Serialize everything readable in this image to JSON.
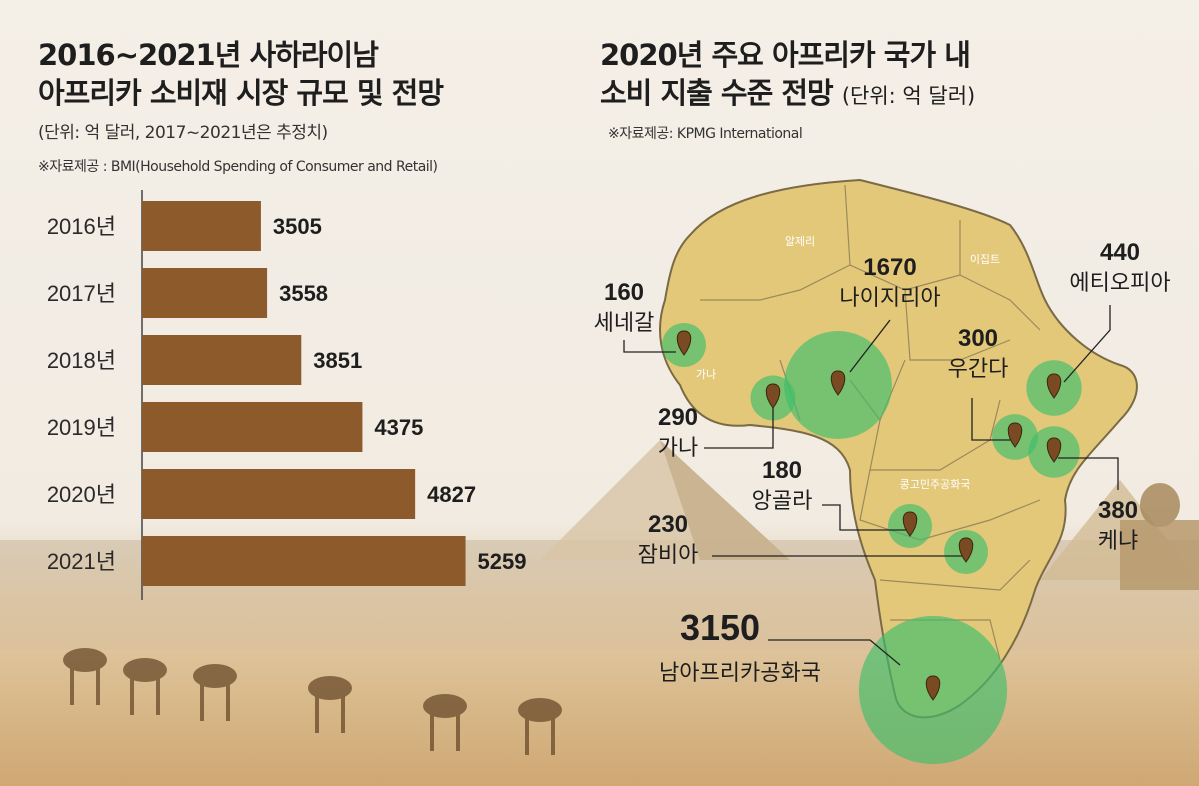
{
  "left": {
    "title_line1": "2016~2021년 사하라이남",
    "title_line2": "아프리카 소비재 시장 규모 및 전망",
    "subtitle": "(단위: 억 달러, 2017~2021년은 추정치)",
    "source": "※자료제공 : BMI(Household Spending of Consumer and Retail)"
  },
  "right": {
    "title_line1": "2020년 주요 아프리카 국가 내",
    "title_line2": "소비 지출 수준 전망",
    "title_unit": "(단위: 억 달러)",
    "source": "※자료제공: KPMG International"
  },
  "chart_data": [
    {
      "type": "bar",
      "orientation": "horizontal",
      "categories": [
        "2016년",
        "2017년",
        "2018년",
        "2019년",
        "2020년",
        "2021년"
      ],
      "values": [
        3505,
        3558,
        3851,
        4375,
        4827,
        5259
      ],
      "title": "2016~2021년 사하라이남 아프리카 소비재 시장 규모 및 전망",
      "unit": "억 달러",
      "bar_color": "#8c5a2b"
    },
    {
      "type": "bubble-map",
      "title": "2020년 주요 아프리카 국가 내 소비 지출 수준 전망",
      "unit": "억 달러",
      "points": [
        {
          "country": "세네갈",
          "value": 160
        },
        {
          "country": "가나",
          "value": 290
        },
        {
          "country": "나이지리아",
          "value": 1670
        },
        {
          "country": "에티오피아",
          "value": 440
        },
        {
          "country": "우간다",
          "value": 300
        },
        {
          "country": "케냐",
          "value": 380
        },
        {
          "country": "앙골라",
          "value": 180
        },
        {
          "country": "잠비아",
          "value": 230
        },
        {
          "country": "남아프리카공화국",
          "value": 3150
        }
      ],
      "map_labels": [
        "알제리",
        "이집트",
        "가나",
        "콩고민주공화국"
      ],
      "land_color": "#e3c87a",
      "bubble_color": "#3dbf6b"
    }
  ]
}
